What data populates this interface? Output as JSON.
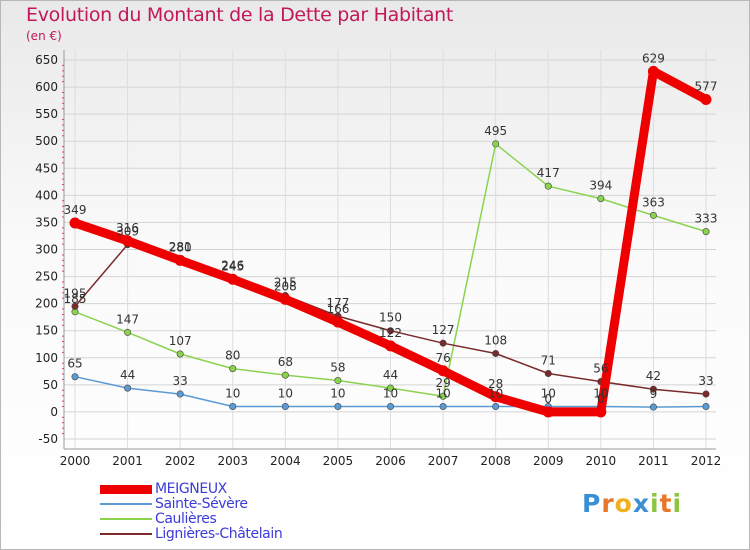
{
  "title": "Evolution du Montant de la Dette par Habitant",
  "unit": "(en €)",
  "logo": {
    "letters": [
      "P",
      "r",
      "o",
      "x",
      "i",
      "t",
      "i"
    ],
    "colors": [
      "#3b8fd6",
      "#e8762b",
      "#f2b01e",
      "#3b8fd6",
      "#8cc63e",
      "#e8762b",
      "#8cc63e"
    ]
  },
  "chart_data": {
    "type": "line",
    "title": "Evolution du Montant de la Dette par Habitant",
    "ylabel": "(en €)",
    "xlabel": "",
    "x": [
      "2000",
      "2001",
      "2002",
      "2003",
      "2004",
      "2005",
      "2006",
      "2007",
      "2008",
      "2009",
      "2010",
      "2011",
      "2012"
    ],
    "ylim": [
      -50,
      650
    ],
    "yticks": [
      "-50",
      "0",
      "50",
      "100",
      "150",
      "200",
      "250",
      "300",
      "350",
      "400",
      "450",
      "500",
      "550",
      "600",
      "650"
    ],
    "grid": true,
    "legend_position": "bottom-left",
    "series": [
      {
        "name": "MEIGNEUX",
        "color": "#ee0000",
        "values": [
          349,
          316,
          280,
          245,
          208,
          166,
          122,
          76,
          28,
          0,
          0,
          629,
          577
        ],
        "labels": [
          "349",
          "316",
          "280",
          "245",
          "208",
          "166",
          "122",
          "76",
          "28",
          "0",
          "0",
          "629",
          "577"
        ]
      },
      {
        "name": "Sainte-Sévère",
        "color": "#5b9bd5",
        "values": [
          65,
          44,
          33,
          10,
          10,
          10,
          10,
          10,
          10,
          10,
          10,
          9,
          10
        ],
        "labels": [
          "65",
          "44",
          "33",
          "10",
          "10",
          "10",
          "10",
          "10",
          "10",
          "10",
          "10",
          "9",
          ""
        ]
      },
      {
        "name": "Caulières",
        "color": "#8bd34f",
        "values": [
          185,
          147,
          107,
          80,
          68,
          58,
          44,
          29,
          495,
          417,
          394,
          363,
          333
        ],
        "labels": [
          "185",
          "147",
          "107",
          "80",
          "68",
          "58",
          "44",
          "29",
          "495",
          "417",
          "394",
          "363",
          "333"
        ]
      },
      {
        "name": "Lignières-Châtelain",
        "color": "#7a2a2a",
        "values": [
          195,
          309,
          281,
          246,
          215,
          177,
          150,
          127,
          108,
          71,
          56,
          42,
          33
        ],
        "labels": [
          "195",
          "309",
          "281",
          "246",
          "215",
          "177",
          "150",
          "127",
          "108",
          "71",
          "56",
          "42",
          "33"
        ]
      }
    ]
  }
}
